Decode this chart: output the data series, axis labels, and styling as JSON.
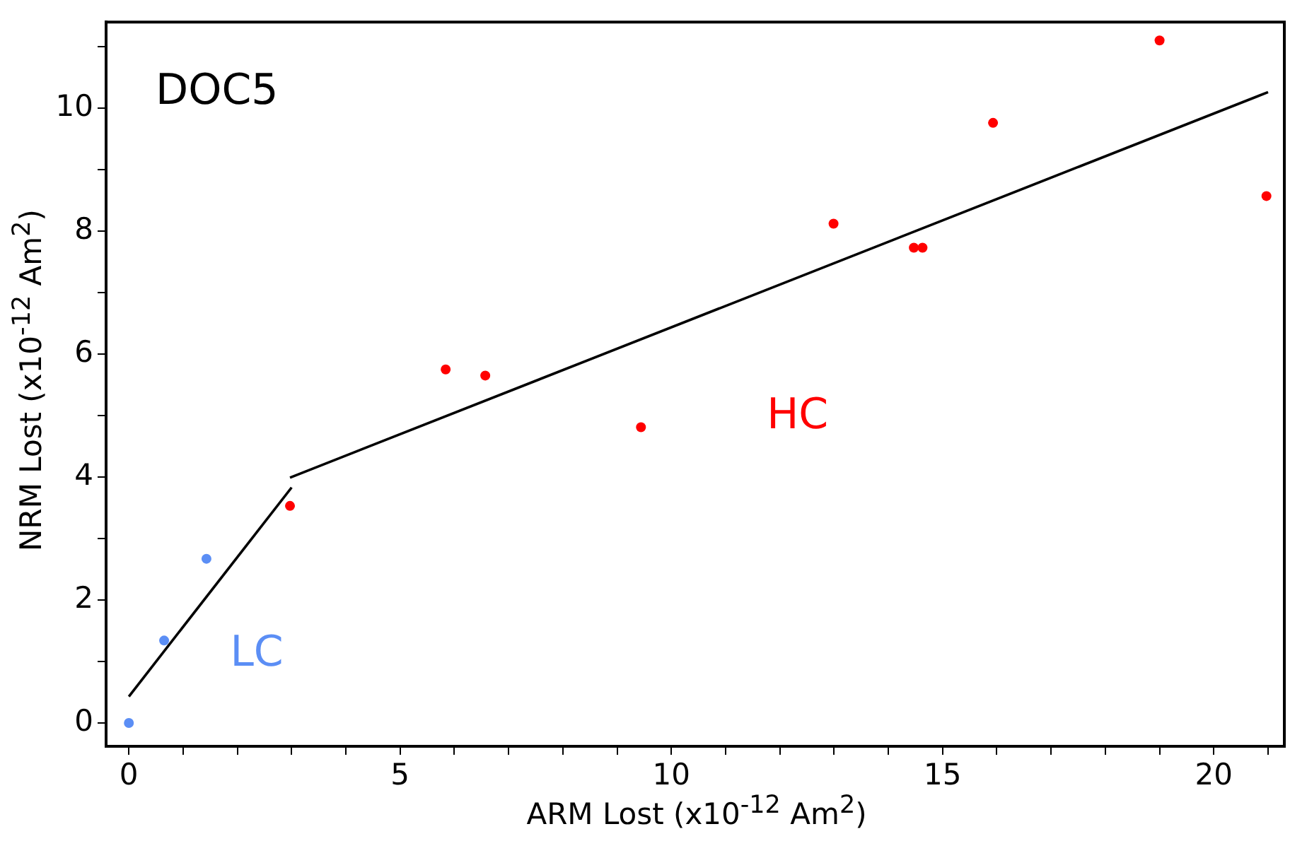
{
  "chart_data": {
    "type": "scatter",
    "xlabel": "ARM Lost (x10$^{-12}$ Am$^{2}$)",
    "ylabel": "NRM Lost (x10$^{-12}$ Am$^{2}$)",
    "annotations": [
      "DOC5"
    ],
    "xlim": [
      -0.42,
      21.3
    ],
    "ylim": [
      -0.38,
      11.4
    ],
    "xticks": [
      0,
      {
        "value": 1,
        "label": null
      },
      {
        "value": 2,
        "label": null
      },
      {
        "value": 3,
        "label": null
      },
      {
        "value": 4,
        "label": null
      },
      5,
      {
        "value": 6,
        "label": null
      },
      {
        "value": 7,
        "label": null
      },
      {
        "value": 8,
        "label": null
      },
      {
        "value": 9,
        "label": null
      },
      10,
      {
        "value": 11,
        "label": null
      },
      {
        "value": 12,
        "label": null
      },
      {
        "value": 13,
        "label": null
      },
      {
        "value": 14,
        "label": null
      },
      15,
      {
        "value": 16,
        "label": null
      },
      {
        "value": 17,
        "label": null
      },
      {
        "value": 18,
        "label": null
      },
      {
        "value": 19,
        "label": null
      },
      20,
      {
        "value": 21,
        "label": null
      }
    ],
    "yticks": [
      0,
      {
        "value": 1,
        "label": null
      },
      2,
      {
        "value": 3,
        "label": null
      },
      4,
      {
        "value": 5,
        "label": null
      },
      6,
      {
        "value": 7,
        "label": null
      },
      8,
      {
        "value": 9,
        "label": null
      },
      10,
      {
        "value": 11,
        "label": null
      }
    ],
    "grid": false,
    "legend": false,
    "marker": "circle",
    "series": [
      {
        "name": "LC",
        "color": "#5b8ef5",
        "type": "scatter",
        "x": [
          0,
          0.65,
          1.43
        ],
        "values": [
          0,
          1.34,
          2.67
        ]
      },
      {
        "name": "HC",
        "color": "#ff0000",
        "type": "scatter",
        "x": [
          2.97,
          5.84,
          6.57,
          9.44,
          12.99,
          14.47,
          14.63,
          15.93,
          19.0,
          20.97
        ],
        "values": [
          3.53,
          5.75,
          5.65,
          4.81,
          8.12,
          7.73,
          7.73,
          9.76,
          11.1,
          8.57
        ]
      },
      {
        "color": "#000000",
        "type": "line",
        "marker": "none",
        "x": [
          0,
          3.0
        ],
        "values": [
          0.43,
          3.83
        ]
      },
      {
        "color": "#000000",
        "type": "line",
        "marker": "none",
        "x": [
          2.97,
          21.0
        ],
        "values": [
          3.99,
          10.26
        ]
      }
    ]
  }
}
